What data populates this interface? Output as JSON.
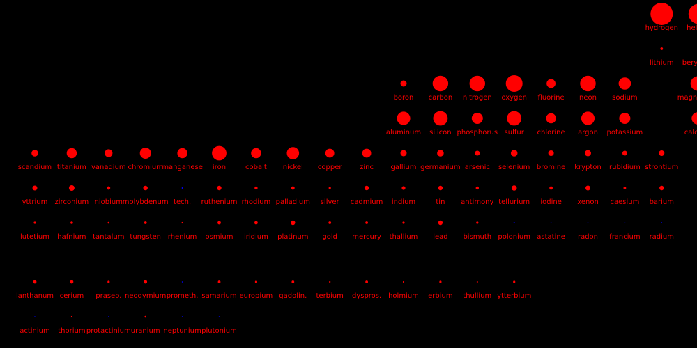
{
  "chart_data": {
    "type": "scatter",
    "title": "",
    "background": "#000000",
    "colors": {
      "present": "#ff0000",
      "absent": "#0000ff",
      "label": "#ff0000"
    },
    "grid": false,
    "legend": "none",
    "elements": [
      {
        "name": "hydrogen",
        "row": 1,
        "col": 18,
        "size": 1.0,
        "present": true
      },
      {
        "name": "helium",
        "row": 1,
        "col": 19,
        "size": 0.9,
        "present": true
      },
      {
        "name": "lithium",
        "row": 2,
        "col": 18,
        "size": 0.12,
        "present": true
      },
      {
        "name": "beryllium",
        "row": 2,
        "col": 19,
        "size": 0.12,
        "present": true
      },
      {
        "name": "boron",
        "row": 3,
        "col": 11,
        "size": 0.28,
        "present": true
      },
      {
        "name": "carbon",
        "row": 3,
        "col": 12,
        "size": 0.7,
        "present": true
      },
      {
        "name": "nitrogen",
        "row": 3,
        "col": 13,
        "size": 0.7,
        "present": true
      },
      {
        "name": "oxygen",
        "row": 3,
        "col": 14,
        "size": 0.75,
        "present": true
      },
      {
        "name": "fluorine",
        "row": 3,
        "col": 15,
        "size": 0.4,
        "present": true
      },
      {
        "name": "neon",
        "row": 3,
        "col": 16,
        "size": 0.7,
        "present": true
      },
      {
        "name": "sodium",
        "row": 3,
        "col": 17,
        "size": 0.55,
        "present": true
      },
      {
        "name": "magnesium",
        "row": 3,
        "col": 18.98,
        "size": 0.65,
        "present": true
      },
      {
        "name": "aluminum",
        "row": 4,
        "col": 11,
        "size": 0.6,
        "present": true
      },
      {
        "name": "silicon",
        "row": 4,
        "col": 12,
        "size": 0.65,
        "present": true
      },
      {
        "name": "phosphorus",
        "row": 4,
        "col": 13,
        "size": 0.5,
        "present": true
      },
      {
        "name": "sulfur",
        "row": 4,
        "col": 14,
        "size": 0.65,
        "present": true
      },
      {
        "name": "chlorine",
        "row": 4,
        "col": 15,
        "size": 0.45,
        "present": true
      },
      {
        "name": "argon",
        "row": 4,
        "col": 16,
        "size": 0.6,
        "present": true
      },
      {
        "name": "potassium",
        "row": 4,
        "col": 17,
        "size": 0.5,
        "present": true
      },
      {
        "name": "calcium",
        "row": 4,
        "col": 18.98,
        "size": 0.55,
        "present": true
      },
      {
        "name": "scandium",
        "row": 5,
        "col": 1,
        "size": 0.3,
        "present": true
      },
      {
        "name": "titanium",
        "row": 5,
        "col": 2,
        "size": 0.45,
        "present": true
      },
      {
        "name": "vanadium",
        "row": 5,
        "col": 3,
        "size": 0.35,
        "present": true
      },
      {
        "name": "chromium",
        "row": 5,
        "col": 4,
        "size": 0.5,
        "present": true
      },
      {
        "name": "manganese",
        "row": 5,
        "col": 5,
        "size": 0.45,
        "present": true
      },
      {
        "name": "iron",
        "row": 5,
        "col": 6,
        "size": 0.65,
        "present": true
      },
      {
        "name": "cobalt",
        "row": 5,
        "col": 7,
        "size": 0.45,
        "present": true
      },
      {
        "name": "nickel",
        "row": 5,
        "col": 8,
        "size": 0.55,
        "present": true
      },
      {
        "name": "copper",
        "row": 5,
        "col": 9,
        "size": 0.4,
        "present": true
      },
      {
        "name": "zinc",
        "row": 5,
        "col": 10,
        "size": 0.4,
        "present": true
      },
      {
        "name": "gallium",
        "row": 5,
        "col": 11,
        "size": 0.28,
        "present": true
      },
      {
        "name": "germanium",
        "row": 5,
        "col": 12,
        "size": 0.3,
        "present": true
      },
      {
        "name": "arsenic",
        "row": 5,
        "col": 13,
        "size": 0.22,
        "present": true
      },
      {
        "name": "selenium",
        "row": 5,
        "col": 14,
        "size": 0.3,
        "present": true
      },
      {
        "name": "bromine",
        "row": 5,
        "col": 15,
        "size": 0.25,
        "present": true
      },
      {
        "name": "krypton",
        "row": 5,
        "col": 16,
        "size": 0.28,
        "present": true
      },
      {
        "name": "rubidium",
        "row": 5,
        "col": 17,
        "size": 0.22,
        "present": true
      },
      {
        "name": "strontium",
        "row": 5,
        "col": 18,
        "size": 0.25,
        "present": true
      },
      {
        "name": "yttrium",
        "row": 6,
        "col": 1,
        "size": 0.22,
        "present": true
      },
      {
        "name": "zirconium",
        "row": 6,
        "col": 2,
        "size": 0.25,
        "present": true
      },
      {
        "name": "niobium",
        "row": 6,
        "col": 3,
        "size": 0.15,
        "present": true
      },
      {
        "name": "molybdenum",
        "row": 6,
        "col": 4,
        "size": 0.2,
        "present": true
      },
      {
        "name": "tech.",
        "row": 6,
        "col": 5,
        "size": 0.06,
        "present": false
      },
      {
        "name": "ruthenium",
        "row": 6,
        "col": 6,
        "size": 0.2,
        "present": true
      },
      {
        "name": "rhodium",
        "row": 6,
        "col": 7,
        "size": 0.14,
        "present": true
      },
      {
        "name": "palladium",
        "row": 6,
        "col": 8,
        "size": 0.15,
        "present": true
      },
      {
        "name": "silver",
        "row": 6,
        "col": 9,
        "size": 0.1,
        "present": true
      },
      {
        "name": "cadmium",
        "row": 6,
        "col": 10,
        "size": 0.2,
        "present": true
      },
      {
        "name": "indium",
        "row": 6,
        "col": 11,
        "size": 0.16,
        "present": true
      },
      {
        "name": "tin",
        "row": 6,
        "col": 12,
        "size": 0.2,
        "present": true
      },
      {
        "name": "antimony",
        "row": 6,
        "col": 13,
        "size": 0.14,
        "present": true
      },
      {
        "name": "tellurium",
        "row": 6,
        "col": 14,
        "size": 0.24,
        "present": true
      },
      {
        "name": "iodine",
        "row": 6,
        "col": 15,
        "size": 0.15,
        "present": true
      },
      {
        "name": "xenon",
        "row": 6,
        "col": 16,
        "size": 0.22,
        "present": true
      },
      {
        "name": "caesium",
        "row": 6,
        "col": 17,
        "size": 0.12,
        "present": true
      },
      {
        "name": "barium",
        "row": 6,
        "col": 18,
        "size": 0.2,
        "present": true
      },
      {
        "name": "lutetium",
        "row": 7,
        "col": 1,
        "size": 0.1,
        "present": true
      },
      {
        "name": "hafnium",
        "row": 7,
        "col": 2,
        "size": 0.11,
        "present": true
      },
      {
        "name": "tantalum",
        "row": 7,
        "col": 3,
        "size": 0.08,
        "present": true
      },
      {
        "name": "tungsten",
        "row": 7,
        "col": 4,
        "size": 0.12,
        "present": true
      },
      {
        "name": "rhenium",
        "row": 7,
        "col": 5,
        "size": 0.07,
        "present": true
      },
      {
        "name": "osmium",
        "row": 7,
        "col": 6,
        "size": 0.15,
        "present": true
      },
      {
        "name": "iridium",
        "row": 7,
        "col": 7,
        "size": 0.15,
        "present": true
      },
      {
        "name": "platinum",
        "row": 7,
        "col": 8,
        "size": 0.2,
        "present": true
      },
      {
        "name": "gold",
        "row": 7,
        "col": 9,
        "size": 0.12,
        "present": true
      },
      {
        "name": "mercury",
        "row": 7,
        "col": 10,
        "size": 0.12,
        "present": true
      },
      {
        "name": "thallium",
        "row": 7,
        "col": 11,
        "size": 0.1,
        "present": true
      },
      {
        "name": "lead",
        "row": 7,
        "col": 12,
        "size": 0.2,
        "present": true
      },
      {
        "name": "bismuth",
        "row": 7,
        "col": 13,
        "size": 0.1,
        "present": true
      },
      {
        "name": "polonium",
        "row": 7,
        "col": 14,
        "size": 0.06,
        "present": false
      },
      {
        "name": "astatine",
        "row": 7,
        "col": 15,
        "size": 0.05,
        "present": false
      },
      {
        "name": "radon",
        "row": 7,
        "col": 16,
        "size": 0.05,
        "present": false
      },
      {
        "name": "francium",
        "row": 7,
        "col": 17,
        "size": 0.05,
        "present": false
      },
      {
        "name": "radium",
        "row": 7,
        "col": 18,
        "size": 0.05,
        "present": false
      },
      {
        "name": "lanthanum",
        "row": 8,
        "col": 1,
        "size": 0.15,
        "present": true
      },
      {
        "name": "cerium",
        "row": 8,
        "col": 2,
        "size": 0.15,
        "present": true
      },
      {
        "name": "praseo.",
        "row": 8,
        "col": 3,
        "size": 0.1,
        "present": true
      },
      {
        "name": "neodymium",
        "row": 8,
        "col": 4,
        "size": 0.15,
        "present": true
      },
      {
        "name": "prometh.",
        "row": 8,
        "col": 5,
        "size": 0.05,
        "present": false
      },
      {
        "name": "samarium",
        "row": 8,
        "col": 6,
        "size": 0.12,
        "present": true
      },
      {
        "name": "europium",
        "row": 8,
        "col": 7,
        "size": 0.1,
        "present": true
      },
      {
        "name": "gadolin.",
        "row": 8,
        "col": 8,
        "size": 0.12,
        "present": true
      },
      {
        "name": "terbium",
        "row": 8,
        "col": 9,
        "size": 0.07,
        "present": true
      },
      {
        "name": "dyspros.",
        "row": 8,
        "col": 10,
        "size": 0.12,
        "present": true
      },
      {
        "name": "holmium",
        "row": 8,
        "col": 11,
        "size": 0.07,
        "present": true
      },
      {
        "name": "erbium",
        "row": 8,
        "col": 12,
        "size": 0.1,
        "present": true
      },
      {
        "name": "thullium",
        "row": 8,
        "col": 13,
        "size": 0.06,
        "present": true
      },
      {
        "name": "ytterbium",
        "row": 8,
        "col": 14,
        "size": 0.1,
        "present": true
      },
      {
        "name": "actinium",
        "row": 9,
        "col": 1,
        "size": 0.05,
        "present": false
      },
      {
        "name": "thorium",
        "row": 9,
        "col": 2,
        "size": 0.07,
        "present": true
      },
      {
        "name": "protactinium",
        "row": 9,
        "col": 3,
        "size": 0.05,
        "present": false
      },
      {
        "name": "uranium",
        "row": 9,
        "col": 4,
        "size": 0.08,
        "present": true
      },
      {
        "name": "neptunium",
        "row": 9,
        "col": 5,
        "size": 0.05,
        "present": false
      },
      {
        "name": "plutonium",
        "row": 9,
        "col": 6,
        "size": 0.05,
        "present": false
      }
    ]
  }
}
